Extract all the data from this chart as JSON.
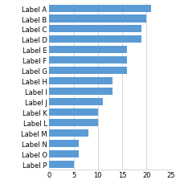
{
  "categories": [
    "Label A",
    "Label B",
    "Label C",
    "Label D",
    "Label E",
    "Label F",
    "Label G",
    "Label H",
    "Label I",
    "Label J",
    "Label K",
    "Label L",
    "Label M",
    "Label N",
    "Label O",
    "Label P"
  ],
  "values": [
    21,
    20,
    19,
    19,
    16,
    16,
    16,
    13,
    13,
    11,
    10,
    10,
    8,
    6,
    6,
    5
  ],
  "bar_color": "#5B9BD5",
  "background_color": "#ffffff",
  "xlim": [
    0,
    25
  ],
  "xticks": [
    0,
    5,
    10,
    15,
    20,
    25
  ],
  "grid_color": "#c8c8c8",
  "tick_label_fontsize": 6,
  "bar_height": 0.7,
  "figsize": [
    2.19,
    2.3
  ],
  "dpi": 100
}
